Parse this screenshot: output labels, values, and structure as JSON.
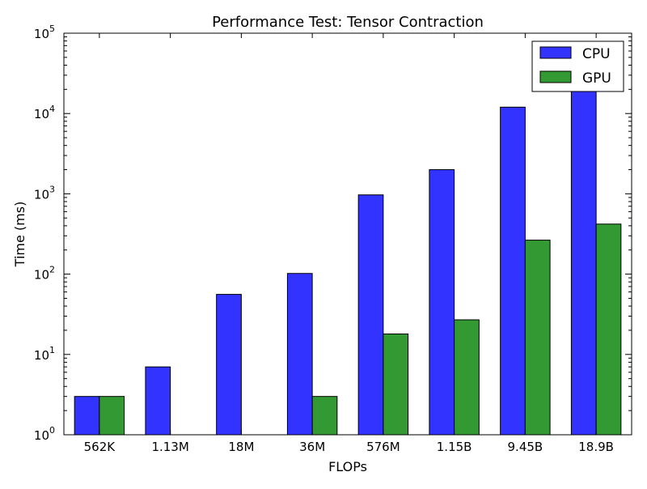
{
  "chart_data": {
    "type": "bar",
    "title": "Performance Test: Tensor Contraction",
    "xlabel": "FLOPs",
    "ylabel": "Time (ms)",
    "yscale": "log",
    "ylim": [
      1,
      100000
    ],
    "yticks": [
      {
        "base": "10",
        "exp": "0"
      },
      {
        "base": "10",
        "exp": "1"
      },
      {
        "base": "10",
        "exp": "2"
      },
      {
        "base": "10",
        "exp": "3"
      },
      {
        "base": "10",
        "exp": "4"
      },
      {
        "base": "10",
        "exp": "5"
      }
    ],
    "categories": [
      "562K",
      "1.13M",
      "18M",
      "36M",
      "576M",
      "1.15B",
      "9.45B",
      "18.9B"
    ],
    "series": [
      {
        "name": "CPU",
        "color": "#3333ff",
        "values": [
          3,
          7,
          56,
          102,
          970,
          2000,
          12000,
          20000
        ]
      },
      {
        "name": "GPU",
        "color": "#339933",
        "values": [
          3,
          1,
          1,
          3,
          18,
          27,
          265,
          420
        ]
      }
    ],
    "legend_position": "top-right",
    "grid": false
  }
}
